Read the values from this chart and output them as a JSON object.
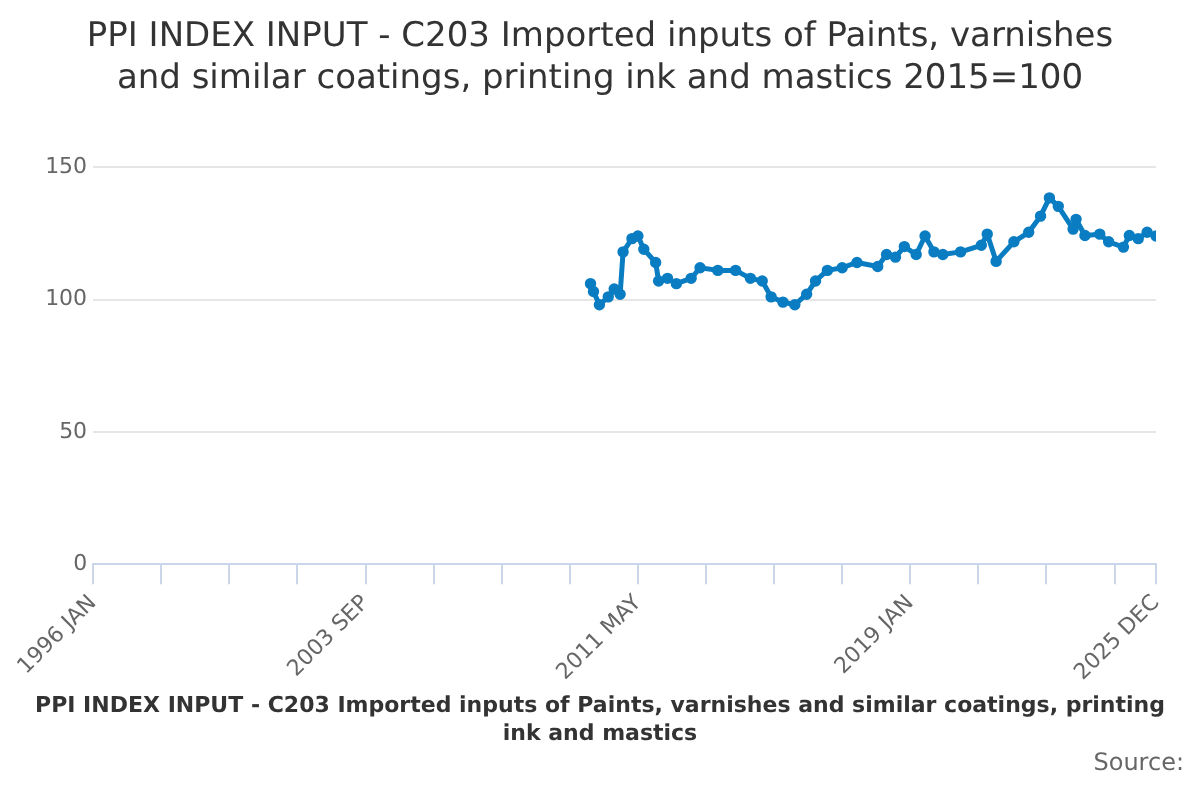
{
  "chart_data": {
    "type": "line",
    "title": "PPI INDEX INPUT - C203 Imported inputs of Paints, varnishes and similar coatings, printing ink and mastics 2015=100",
    "x": [
      "2010-01",
      "2010-02",
      "2010-04",
      "2010-07",
      "2010-09",
      "2010-11",
      "2010-12",
      "2011-03",
      "2011-05",
      "2011-07",
      "2011-11",
      "2011-12",
      "2012-03",
      "2012-06",
      "2012-11",
      "2013-02",
      "2013-08",
      "2014-02",
      "2014-07",
      "2014-11",
      "2015-02",
      "2015-06",
      "2015-10",
      "2016-02",
      "2016-05",
      "2016-09",
      "2017-02",
      "2017-07",
      "2018-02",
      "2018-05",
      "2018-08",
      "2018-11",
      "2019-03",
      "2019-06",
      "2019-09",
      "2019-12",
      "2020-06",
      "2021-01",
      "2021-03",
      "2021-06",
      "2021-12",
      "2022-05",
      "2022-09",
      "2022-12",
      "2023-03",
      "2023-08",
      "2023-09",
      "2023-12",
      "2024-05",
      "2024-08",
      "2025-01",
      "2025-03",
      "2025-06",
      "2025-09",
      "2025-12"
    ],
    "series": [
      {
        "color": "#0a7dc2",
        "values": [
          106,
          103,
          98,
          101,
          104,
          102,
          118,
          123,
          124,
          119,
          114,
          107,
          108,
          106,
          108,
          112,
          111,
          111,
          108,
          107,
          101,
          99,
          98,
          102,
          107,
          111,
          112,
          114,
          112.5,
          117,
          116,
          120,
          117,
          124,
          118,
          117,
          118,
          120.5,
          124.7,
          114.4,
          121.8,
          125.4,
          131.5,
          138.4,
          135.2,
          126.6,
          130.3,
          124.2,
          124.7,
          121.8,
          119.8,
          124.2,
          123,
          125.4,
          124
        ]
      }
    ],
    "xlim": [
      "1996-01",
      "2025-12"
    ],
    "xticks": [
      {
        "value": "1996-01",
        "label": "1996 JAN"
      },
      {
        "value": "1997-12",
        "label": null
      },
      {
        "value": "1999-11",
        "label": null
      },
      {
        "value": "2001-10",
        "label": null
      },
      {
        "value": "2003-09",
        "label": "2003 SEP"
      },
      {
        "value": "2005-08",
        "label": null
      },
      {
        "value": "2007-07",
        "label": null
      },
      {
        "value": "2009-06",
        "label": null
      },
      {
        "value": "2011-05",
        "label": "2011 MAY"
      },
      {
        "value": "2013-04",
        "label": null
      },
      {
        "value": "2015-03",
        "label": null
      },
      {
        "value": "2017-02",
        "label": null
      },
      {
        "value": "2019-01",
        "label": "2019 JAN"
      },
      {
        "value": "2020-12",
        "label": null
      },
      {
        "value": "2022-11",
        "label": null
      },
      {
        "value": "2024-10",
        "label": null
      },
      {
        "value": "2025-12",
        "label": "2025 DEC"
      }
    ],
    "ylim": [
      0,
      150
    ],
    "yticks": [
      0,
      50,
      100,
      150
    ],
    "grid": "y",
    "legend": false,
    "marker": "circle",
    "line_style": "solid",
    "annotations": [
      "PPI INDEX INPUT - C203 Imported inputs of Paints, varnishes and similar coatings, printing ink and mastics",
      "Source:"
    ]
  }
}
